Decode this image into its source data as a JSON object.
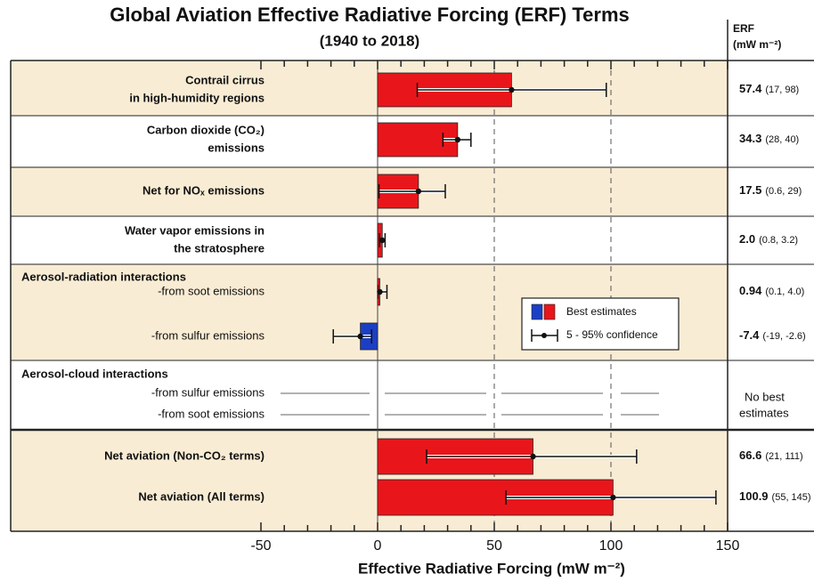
{
  "chart_data": {
    "type": "bar",
    "orientation": "horizontal",
    "title": "Global Aviation Effective Radiative Forcing (ERF) Terms",
    "subtitle": "(1940 to 2018)",
    "x_label": "Effective Radiative Forcing  (mW m⁻²)",
    "column_header": [
      "ERF",
      "(mW m⁻²)"
    ],
    "categories": [
      [
        "Contrail cirrus",
        "in high-humidity regions"
      ],
      [
        "Carbon dioxide (CO₂)",
        "emissions"
      ],
      [
        "Net for NOₓ emissions"
      ],
      [
        "Water vapor emissions in",
        "the stratosphere"
      ],
      [
        "-from soot emissions"
      ],
      [
        "-from sulfur emissions"
      ],
      [
        "-from sulfur emissions"
      ],
      [
        "-from soot emissions"
      ],
      [
        "Net aviation (Non-CO₂ terms)"
      ],
      [
        "Net aviation (All terms)"
      ]
    ],
    "group_labels": [
      "Aerosol-radiation interactions",
      "Aerosol-cloud interactions"
    ],
    "series": [
      {
        "name": "Best estimates",
        "values": [
          57.4,
          34.3,
          17.5,
          2.0,
          0.94,
          -7.4,
          null,
          null,
          66.6,
          100.9
        ],
        "lower": [
          17,
          28,
          0.6,
          0.8,
          0.1,
          -19,
          null,
          null,
          21,
          55
        ],
        "upper": [
          98,
          40,
          29,
          3.2,
          4.0,
          -2.6,
          null,
          null,
          111,
          145
        ],
        "value_labels": [
          "57.4",
          "34.3",
          "17.5",
          "2.0",
          "0.94",
          "-7.4",
          null,
          null,
          "66.6",
          "100.9"
        ],
        "range_labels": [
          "(17, 98)",
          "(28, 40)",
          "(0.6, 29)",
          "(0.8, 3.2)",
          "(0.1, 4.0)",
          "(-19, -2.6)",
          null,
          null,
          "(21, 111)",
          "(55, 145)"
        ]
      }
    ],
    "error_bar_name": "5 - 95% confidence",
    "no_estimate_label": [
      "No best",
      "estimates"
    ],
    "colors": {
      "positive": "#e8161b",
      "negative": "#1b3fc4"
    },
    "xlim": [
      -50,
      150
    ],
    "xticks": [
      -50,
      0,
      50,
      100,
      150
    ],
    "minor_xticks": [
      -40,
      -30,
      -20,
      -10,
      10,
      20,
      30,
      40,
      60,
      70,
      80,
      90,
      110,
      120,
      130,
      140
    ],
    "dashed_lines": [
      50,
      100
    ],
    "zero_line": 0
  }
}
